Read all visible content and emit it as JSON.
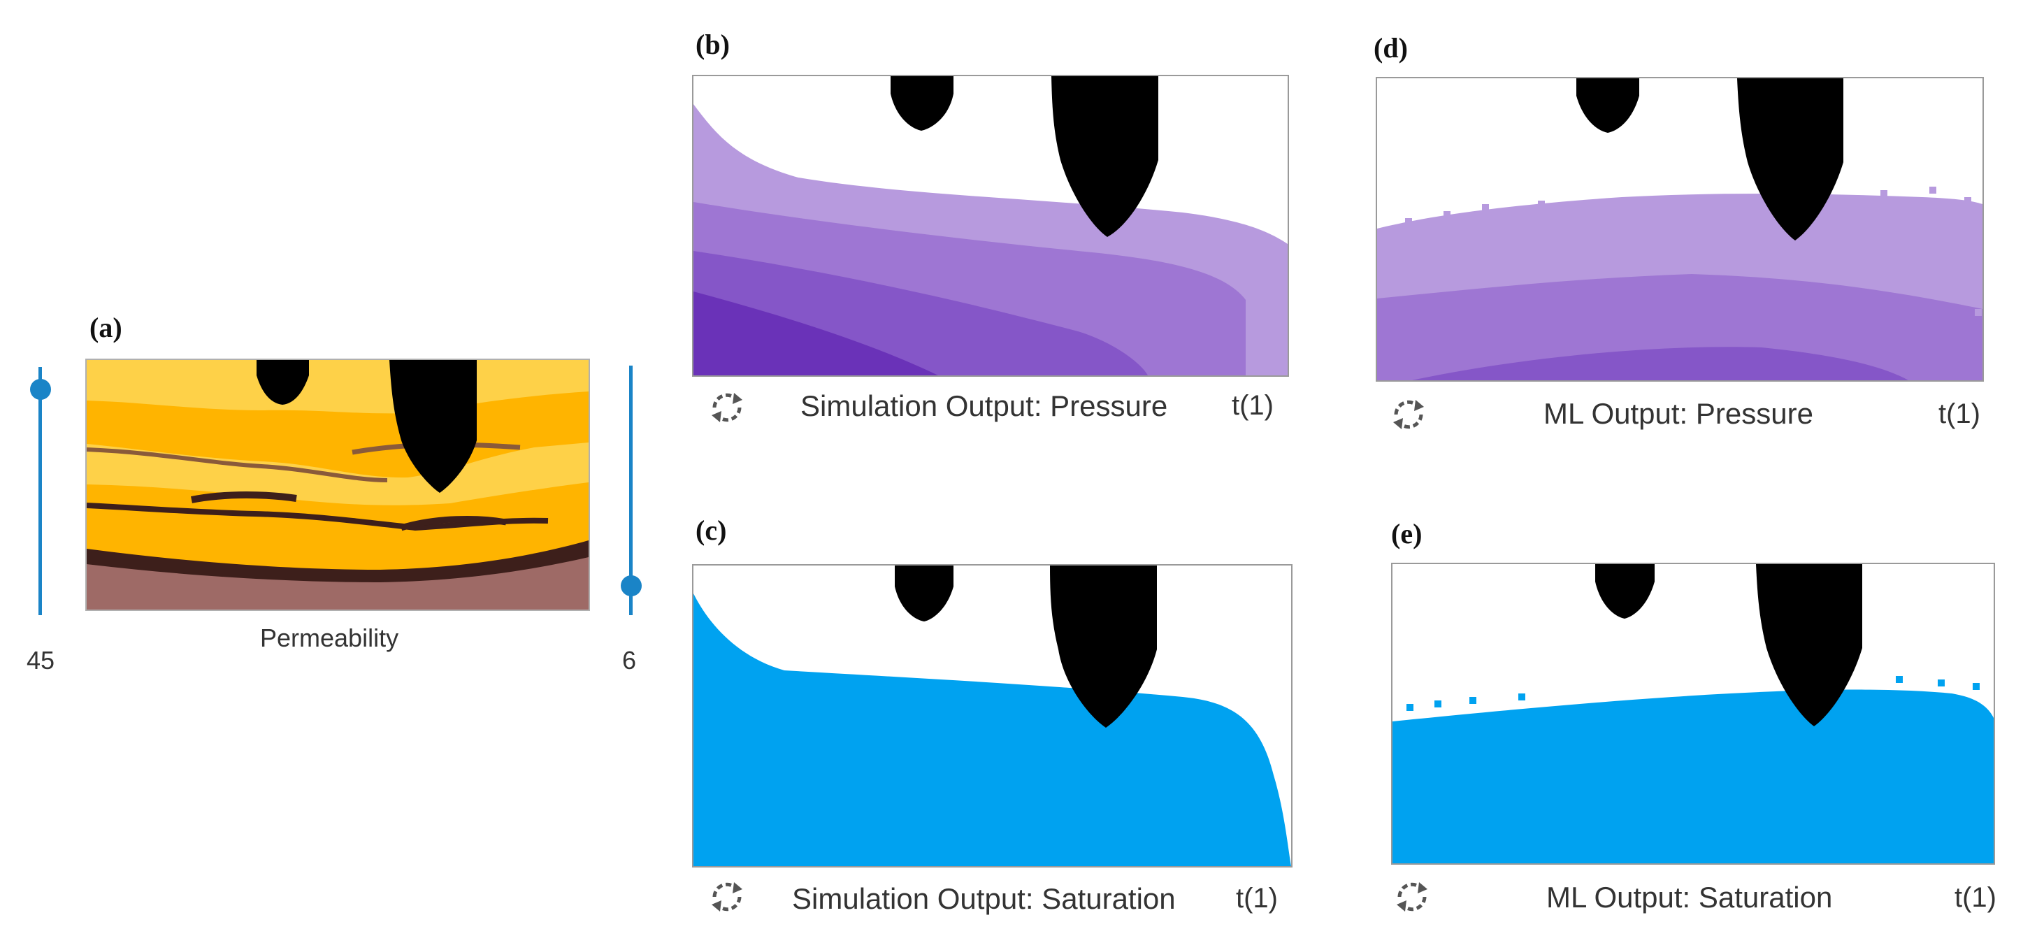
{
  "panels": {
    "a": {
      "label": "(a)",
      "caption": "Permeability"
    },
    "b": {
      "label": "(b)",
      "caption": "Simulation Output: Pressure",
      "time": "t(1)"
    },
    "c": {
      "label": "(c)",
      "caption": "Simulation Output: Saturation",
      "time": "t(1)"
    },
    "d": {
      "label": "(d)",
      "caption": "ML Output: Pressure",
      "time": "t(1)"
    },
    "e": {
      "label": "(e)",
      "caption": "ML Output: Saturation",
      "time": "t(1)"
    }
  },
  "sliders": {
    "left": {
      "value": "45",
      "level": 0.9
    },
    "right": {
      "value": "6",
      "level": 0.1
    }
  },
  "colors": {
    "slider": "#1a84c7",
    "perm_light": "#fed148",
    "perm_mid": "#ffb400",
    "perm_dark": "#3d1f1b",
    "perm_base": "#9e6a66",
    "pressure_1": "#b79ade",
    "pressure_2": "#9e76d3",
    "pressure_3": "#8556c8",
    "pressure_4": "#6a32b8",
    "saturation": "#00a2f0",
    "well": "#000000"
  },
  "icons": {
    "refresh": "refresh-icon"
  }
}
